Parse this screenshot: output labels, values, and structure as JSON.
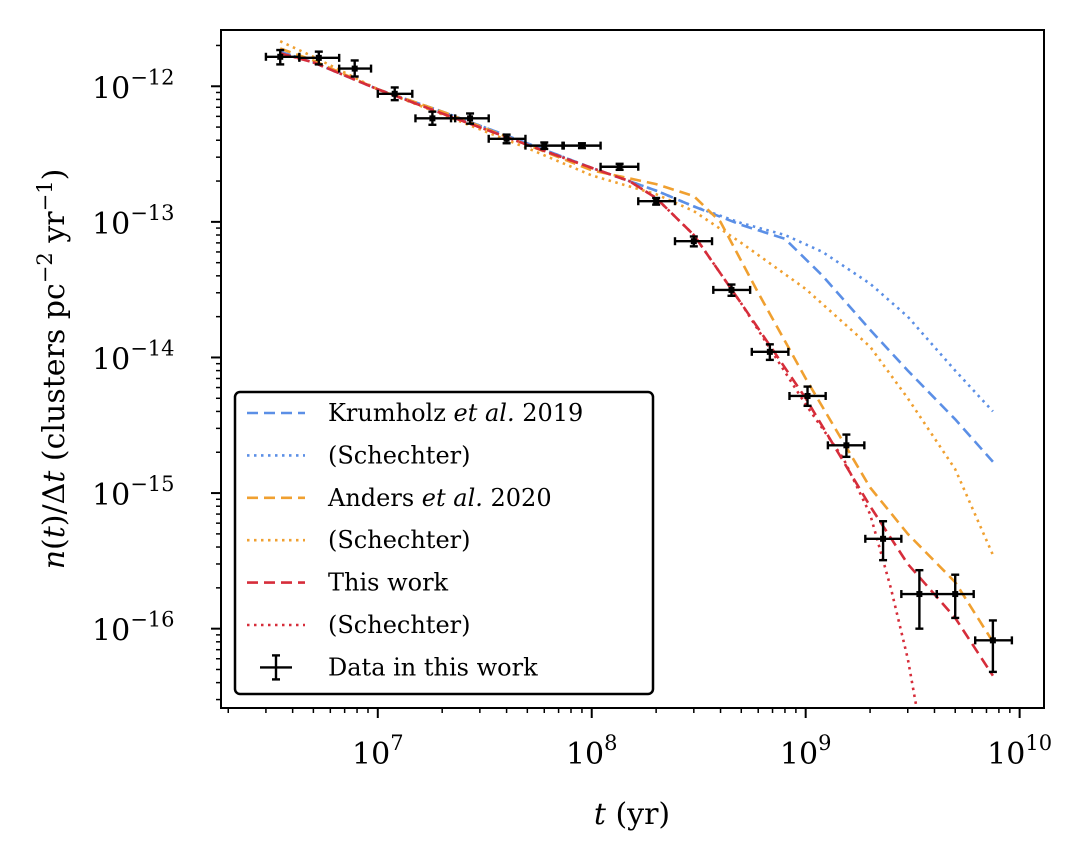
{
  "chart_data": {
    "type": "line",
    "xlabel": "t (yr)",
    "ylabel": "n(t)/Δt (clusters pc⁻² yr⁻¹)",
    "xscale": "log",
    "yscale": "log",
    "xlim": [
      1850000.0,
      13000000000.0
    ],
    "ylim": [
      2.6e-17,
      2.6e-12
    ],
    "grid": false,
    "legend_position": "lower-left",
    "x_ticks": [
      {
        "value": 10000000.0,
        "base": "10",
        "exp": "7"
      },
      {
        "value": 100000000.0,
        "base": "10",
        "exp": "8"
      },
      {
        "value": 1000000000.0,
        "base": "10",
        "exp": "9"
      },
      {
        "value": 10000000000.0,
        "base": "10",
        "exp": "10"
      }
    ],
    "y_ticks": [
      {
        "value": 1e-12,
        "base": "10",
        "exp": "−12"
      },
      {
        "value": 1e-13,
        "base": "10",
        "exp": "−13"
      },
      {
        "value": 1e-14,
        "base": "10",
        "exp": "−14"
      },
      {
        "value": 1e-15,
        "base": "10",
        "exp": "−15"
      },
      {
        "value": 1e-16,
        "base": "10",
        "exp": "−16"
      }
    ],
    "series": [
      {
        "name": "Krumholz et al. 2019",
        "name_parts": [
          "Krumholz ",
          "et al.",
          " 2019"
        ],
        "style": "dashed",
        "color": "#5b8fe6",
        "x": [
          3500000.0,
          5000000.0,
          10000000.0,
          20000000.0,
          50000000.0,
          100000000.0,
          200000000.0,
          300000000.0,
          500000000.0,
          800000000.0,
          1200000000.0,
          2000000000.0,
          3000000000.0,
          5000000000.0,
          7500000000.0
        ],
        "y": [
          1.8e-12,
          1.5e-12,
          9.5e-13,
          6.5e-13,
          3.8e-13,
          2.5e-13,
          1.7e-13,
          1.3e-13,
          9.5e-14,
          7.5e-14,
          4e-14,
          1.6e-14,
          8e-15,
          3.5e-15,
          1.7e-15
        ]
      },
      {
        "name": "(Schechter)",
        "style": "dotted",
        "color": "#5b8fe6",
        "x": [
          3500000.0,
          5000000.0,
          10000000.0,
          20000000.0,
          50000000.0,
          100000000.0,
          200000000.0,
          300000000.0,
          500000000.0,
          800000000.0,
          1200000000.0,
          2000000000.0,
          3000000000.0,
          5000000000.0,
          7500000000.0
        ],
        "y": [
          1.8e-12,
          1.5e-12,
          9.5e-13,
          6.5e-13,
          3.8e-13,
          2.5e-13,
          1.7e-13,
          1.3e-13,
          9.8e-14,
          8e-14,
          6e-14,
          3.5e-14,
          2e-14,
          8e-15,
          4e-15
        ]
      },
      {
        "name": "Anders et al. 2020",
        "name_parts": [
          "Anders ",
          "et al.",
          " 2020"
        ],
        "style": "dashed",
        "color": "#f0a030",
        "x": [
          3500000.0,
          5000000.0,
          10000000.0,
          20000000.0,
          50000000.0,
          100000000.0,
          200000000.0,
          300000000.0,
          400000000.0,
          600000000.0,
          1000000000.0,
          2000000000.0,
          3000000000.0,
          5000000000.0,
          7500000000.0
        ],
        "y": [
          1.9e-12,
          1.55e-12,
          9.5e-13,
          6.5e-13,
          3.7e-13,
          2.4e-13,
          1.9e-13,
          1.55e-13,
          1e-13,
          3e-14,
          7e-15,
          1.1e-15,
          5e-16,
          2.2e-16,
          8e-17
        ]
      },
      {
        "name": "(Schechter)",
        "style": "dotted",
        "color": "#f0a030",
        "x": [
          3500000.0,
          5000000.0,
          10000000.0,
          20000000.0,
          50000000.0,
          100000000.0,
          200000000.0,
          300000000.0,
          500000000.0,
          1000000000.0,
          2000000000.0,
          3000000000.0,
          5000000000.0,
          7500000000.0
        ],
        "y": [
          2.15e-12,
          1.65e-12,
          9.5e-13,
          6.2e-13,
          3.5e-13,
          2.2e-13,
          1.6e-13,
          1.2e-13,
          7e-14,
          3.2e-14,
          1.2e-14,
          5e-15,
          1.5e-15,
          3.5e-16
        ]
      },
      {
        "name": "This work",
        "style": "dashed",
        "color": "#d62d3a",
        "x": [
          3500000.0,
          5000000.0,
          10000000.0,
          20000000.0,
          50000000.0,
          100000000.0,
          150000000.0,
          200000000.0,
          300000000.0,
          500000000.0,
          1000000000.0,
          2000000000.0,
          3000000000.0,
          5000000000.0,
          7500000000.0
        ],
        "y": [
          1.75e-12,
          1.5e-12,
          9.5e-13,
          6.3e-13,
          3.7e-13,
          2.5e-13,
          2e-13,
          1.5e-13,
          8e-14,
          2.5e-14,
          5e-15,
          8e-16,
          3e-16,
          1.2e-16,
          4.5e-17
        ]
      },
      {
        "name": "(Schechter)",
        "style": "dotted",
        "color": "#d62d3a",
        "x": [
          3500000.0,
          5000000.0,
          10000000.0,
          20000000.0,
          50000000.0,
          100000000.0,
          150000000.0,
          200000000.0,
          300000000.0,
          500000000.0,
          1000000000.0,
          1500000000.0,
          2000000000.0,
          2500000000.0,
          3000000000.0,
          3300000000.0
        ],
        "y": [
          1.75e-12,
          1.5e-12,
          9.5e-13,
          6.3e-13,
          3.7e-13,
          2.5e-13,
          2e-13,
          1.5e-13,
          8e-14,
          2.5e-14,
          4.5e-15,
          1.8e-15,
          7e-16,
          2e-16,
          6e-17,
          2.6e-17
        ]
      }
    ],
    "data_points": {
      "name": "Data in this work",
      "color": "#000000",
      "points": [
        {
          "x": 3500000.0,
          "y": 1.65e-12,
          "xlo": 3000000.0,
          "xhi": 4300000.0,
          "ylo": 1.45e-12,
          "yhi": 1.85e-12
        },
        {
          "x": 5300000.0,
          "y": 1.62e-12,
          "xlo": 4300000.0,
          "xhi": 6600000.0,
          "ylo": 1.45e-12,
          "yhi": 1.8e-12
        },
        {
          "x": 7800000.0,
          "y": 1.35e-12,
          "xlo": 6600000.0,
          "xhi": 9300000.0,
          "ylo": 1.18e-12,
          "yhi": 1.55e-12
        },
        {
          "x": 12000000.0,
          "y": 8.8e-13,
          "xlo": 10000000.0,
          "xhi": 14500000.0,
          "ylo": 7.9e-13,
          "yhi": 9.8e-13
        },
        {
          "x": 18000000.0,
          "y": 5.8e-13,
          "xlo": 15000000.0,
          "xhi": 23000000.0,
          "ylo": 5.2e-13,
          "yhi": 6.5e-13
        },
        {
          "x": 27000000.0,
          "y": 5.8e-13,
          "xlo": 22000000.0,
          "xhi": 33000000.0,
          "ylo": 5.3e-13,
          "yhi": 6.3e-13
        },
        {
          "x": 40000000.0,
          "y": 4.1e-13,
          "xlo": 33000000.0,
          "xhi": 49000000.0,
          "ylo": 3.8e-13,
          "yhi": 4.4e-13
        },
        {
          "x": 60000000.0,
          "y": 3.65e-13,
          "xlo": 49000000.0,
          "xhi": 73000000.0,
          "ylo": 3.45e-13,
          "yhi": 3.85e-13
        },
        {
          "x": 90000000.0,
          "y": 3.65e-13,
          "xlo": 74000000.0,
          "xhi": 110000000.0,
          "ylo": 3.5e-13,
          "yhi": 3.8e-13
        },
        {
          "x": 135000000.0,
          "y": 2.55e-13,
          "xlo": 110000000.0,
          "xhi": 165000000.0,
          "ylo": 2.42e-13,
          "yhi": 2.68e-13
        },
        {
          "x": 200000000.0,
          "y": 1.42e-13,
          "xlo": 165000000.0,
          "xhi": 245000000.0,
          "ylo": 1.34e-13,
          "yhi": 1.5e-13
        },
        {
          "x": 300000000.0,
          "y": 7.2e-14,
          "xlo": 245000000.0,
          "xhi": 365000000.0,
          "ylo": 6.6e-14,
          "yhi": 7.8e-14
        },
        {
          "x": 450000000.0,
          "y": 3.15e-14,
          "xlo": 370000000.0,
          "xhi": 550000000.0,
          "ylo": 2.85e-14,
          "yhi": 3.45e-14
        },
        {
          "x": 680000000.0,
          "y": 1.1e-14,
          "xlo": 560000000.0,
          "xhi": 830000000.0,
          "ylo": 9.6e-15,
          "yhi": 1.25e-14
        },
        {
          "x": 1020000000.0,
          "y": 5.2e-15,
          "xlo": 840000000.0,
          "xhi": 1240000000.0,
          "ylo": 4.4e-15,
          "yhi": 6.1e-15
        },
        {
          "x": 1550000000.0,
          "y": 2.25e-15,
          "xlo": 1270000000.0,
          "xhi": 1880000000.0,
          "ylo": 1.85e-15,
          "yhi": 2.7e-15
        },
        {
          "x": 2300000000.0,
          "y": 4.6e-16,
          "xlo": 1900000000.0,
          "xhi": 2800000000.0,
          "ylo": 3.2e-16,
          "yhi": 6.2e-16
        },
        {
          "x": 3400000000.0,
          "y": 1.8e-16,
          "xlo": 2800000000.0,
          "xhi": 4100000000.0,
          "ylo": 1e-16,
          "yhi": 2.7e-16
        },
        {
          "x": 5000000000.0,
          "y": 1.8e-16,
          "xlo": 4100000000.0,
          "xhi": 6100000000.0,
          "ylo": 1.2e-16,
          "yhi": 2.5e-16
        },
        {
          "x": 7500000000.0,
          "y": 8.2e-17,
          "xlo": 6200000000.0,
          "xhi": 9200000000.0,
          "ylo": 4.8e-17,
          "yhi": 1.15e-16
        }
      ]
    }
  }
}
